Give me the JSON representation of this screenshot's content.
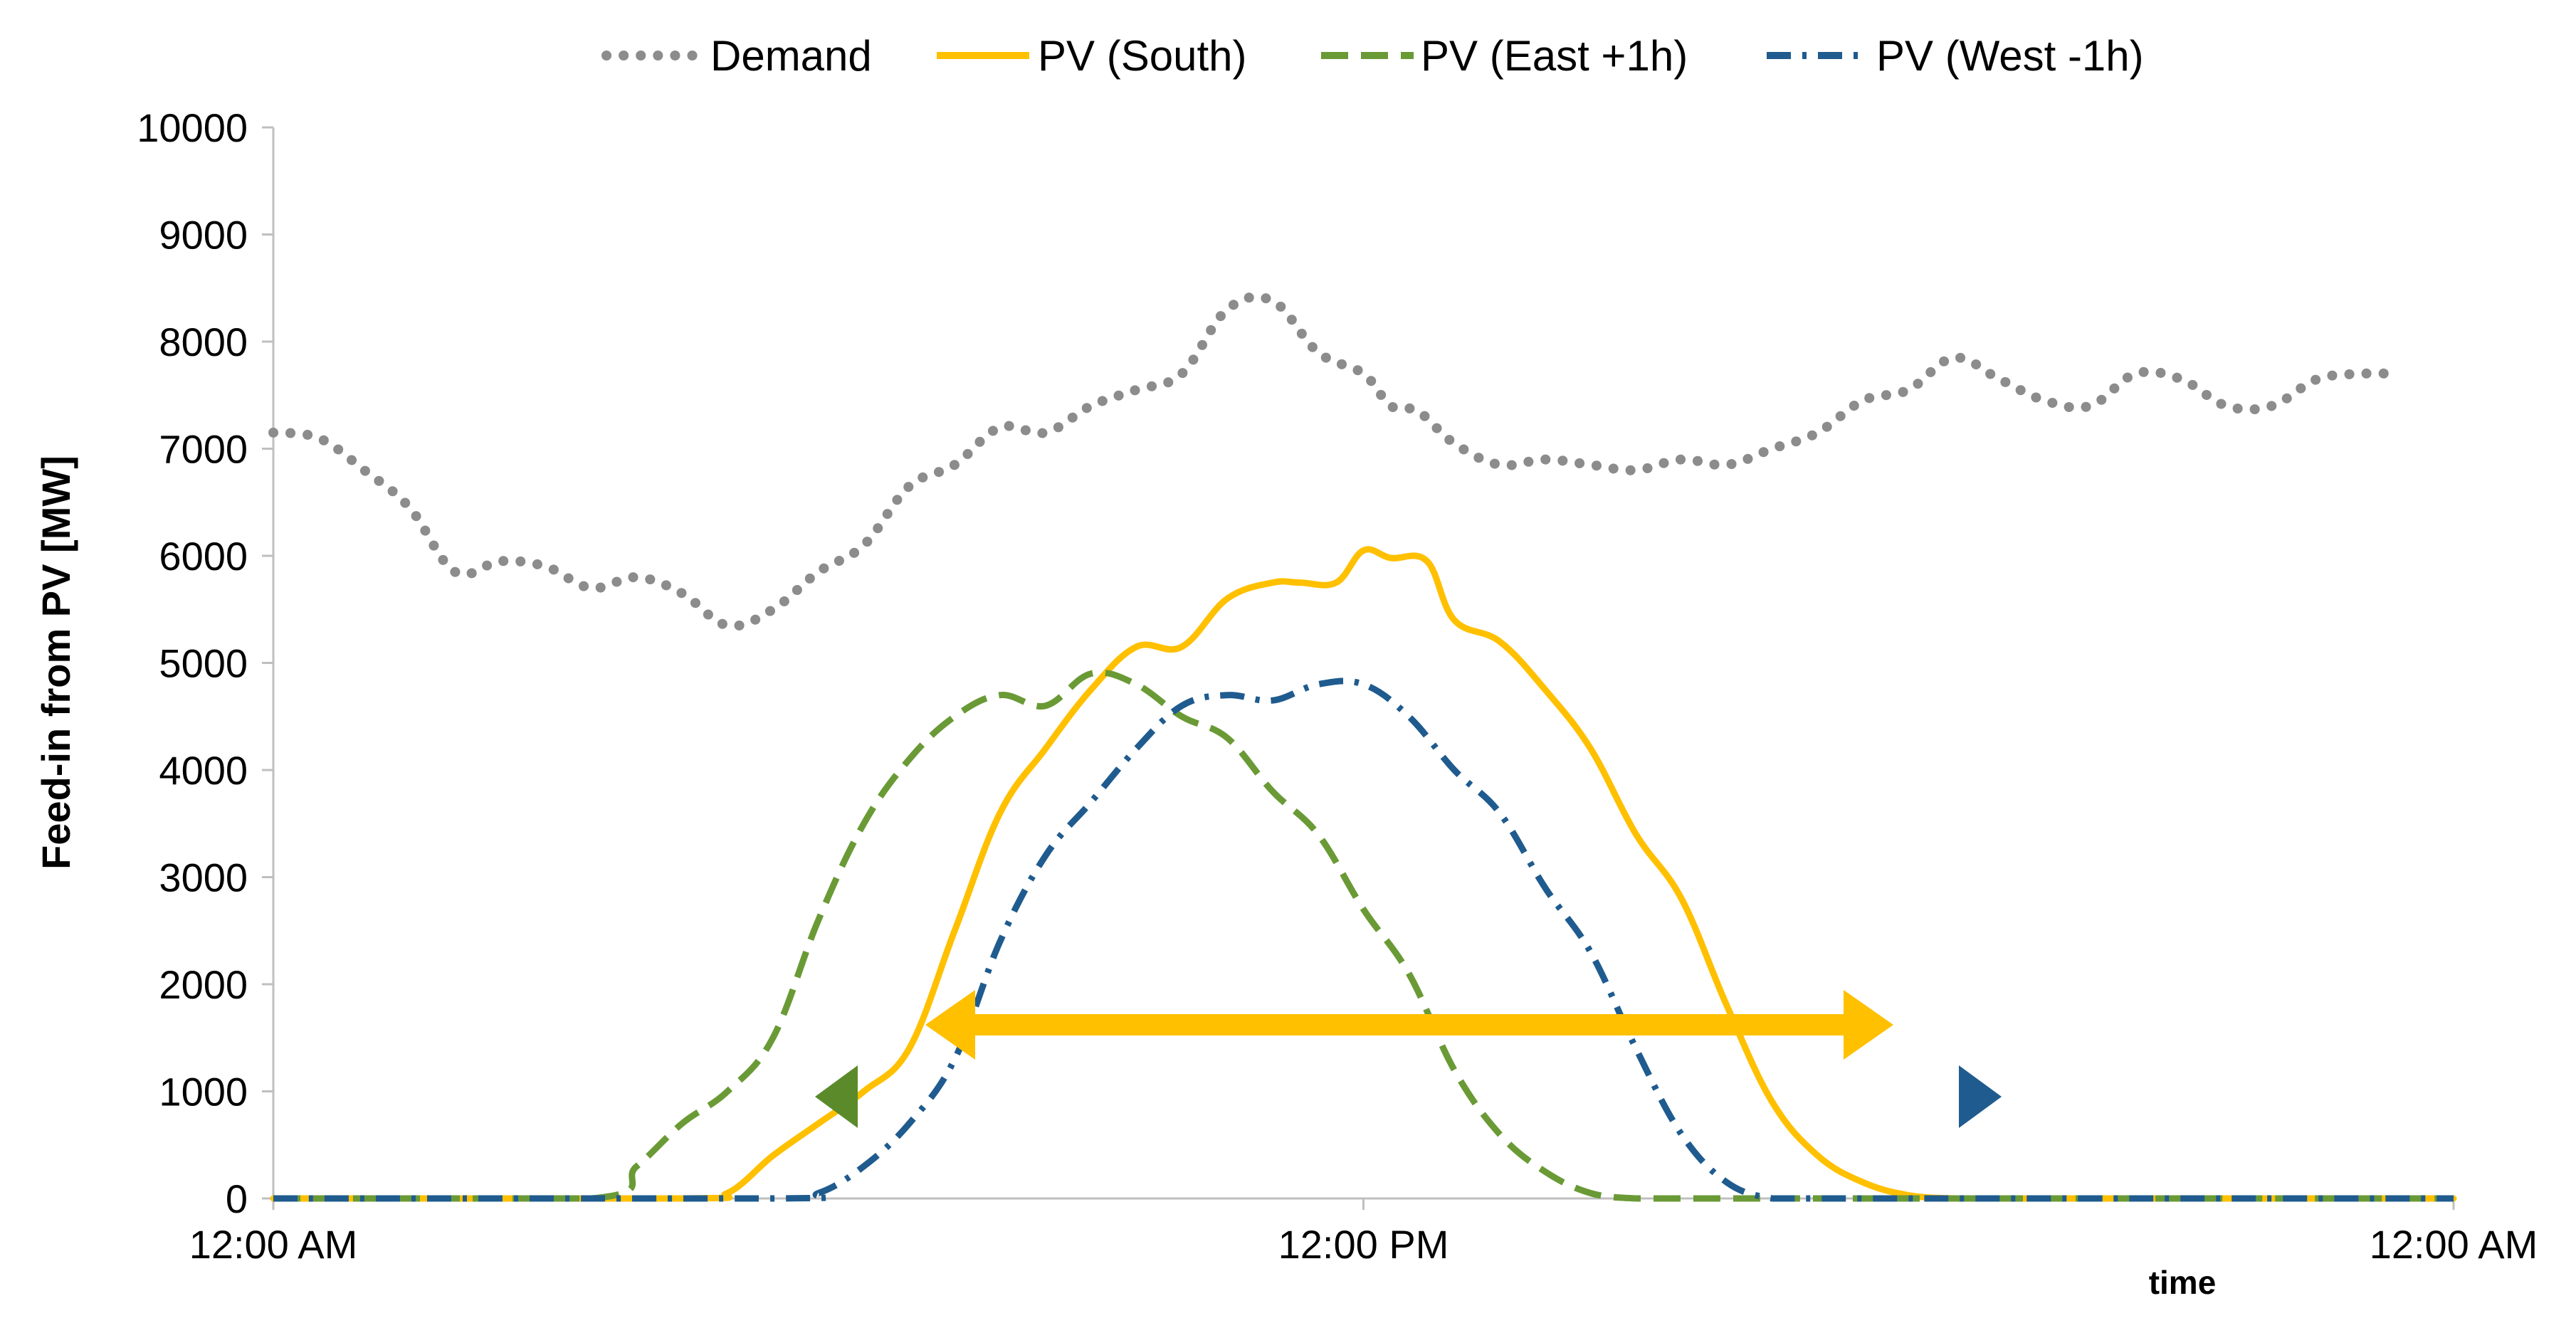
{
  "chart_data": {
    "type": "line",
    "title": "",
    "xlabel": "time",
    "ylabel": "Feed-in from PV [MW]",
    "ylim": [
      0,
      10000
    ],
    "yticks": [
      0,
      1000,
      2000,
      3000,
      4000,
      5000,
      6000,
      7000,
      8000,
      9000,
      10000
    ],
    "xlim": [
      0,
      24
    ],
    "xticks": [
      {
        "hour": 0,
        "label": "12:00 AM"
      },
      {
        "hour": 12,
        "label": "12:00 PM"
      },
      {
        "hour": 24,
        "label": "12:00 AM"
      }
    ],
    "grid": false,
    "legend_position": "top-center",
    "series": [
      {
        "name": "Demand",
        "style": "dotted",
        "color": "#8c8c8c",
        "x": [
          0,
          0.5,
          1,
          1.5,
          2,
          2.5,
          3,
          3.5,
          4,
          4.5,
          5,
          5.5,
          6,
          6.5,
          7,
          7.5,
          8,
          8.5,
          9,
          9.5,
          10,
          10.5,
          11,
          11.5,
          12,
          12.3,
          12.6,
          13,
          13.5,
          14,
          14.5,
          15,
          15.5,
          16,
          16.5,
          17,
          17.5,
          18,
          18.5,
          19,
          19.5,
          20,
          20.5,
          21,
          21.5,
          22,
          22.5,
          23,
          23.3
        ],
        "values": [
          7150,
          7100,
          6800,
          6450,
          5850,
          5950,
          5900,
          5700,
          5800,
          5650,
          5350,
          5500,
          5850,
          6100,
          6650,
          6850,
          7200,
          7150,
          7400,
          7550,
          7700,
          8300,
          8380,
          7900,
          7700,
          7400,
          7350,
          7050,
          6850,
          6900,
          6850,
          6800,
          6900,
          6850,
          7000,
          7150,
          7450,
          7550,
          7850,
          7650,
          7450,
          7400,
          7700,
          7650,
          7400,
          7400,
          7650,
          7700,
          7700
        ]
      },
      {
        "name": "PV (South)",
        "style": "solid",
        "color": "#ffc000",
        "x": [
          0,
          4.5,
          5,
          5.5,
          6,
          6.5,
          7,
          7.5,
          8,
          8.5,
          9,
          9.5,
          10,
          10.5,
          11,
          11.3,
          11.7,
          12,
          12.3,
          12.7,
          13,
          13.5,
          14,
          14.5,
          15,
          15.5,
          16,
          16.5,
          17,
          17.5,
          18,
          18.5,
          19,
          19.5,
          20,
          24
        ],
        "values": [
          0,
          0,
          50,
          400,
          700,
          1000,
          1400,
          2500,
          3600,
          4200,
          4750,
          5150,
          5150,
          5600,
          5750,
          5750,
          5750,
          6050,
          5980,
          5950,
          5400,
          5200,
          4750,
          4200,
          3400,
          2800,
          1800,
          900,
          400,
          150,
          30,
          0,
          0,
          0,
          0,
          0
        ]
      },
      {
        "name": "PV (East +1h)",
        "style": "dashed",
        "color": "#6a9a35",
        "x": [
          0,
          3.5,
          4,
          4.5,
          5,
          5.5,
          6,
          6.5,
          7,
          7.5,
          8,
          8.5,
          9,
          9.5,
          10,
          10.5,
          11,
          11.5,
          12,
          12.5,
          13,
          13.5,
          14,
          14.5,
          15,
          15.5,
          16,
          16.5,
          17,
          17.5,
          18,
          18.5,
          19,
          24
        ],
        "values": [
          0,
          0,
          300,
          700,
          1000,
          1500,
          2600,
          3500,
          4100,
          4500,
          4700,
          4600,
          4900,
          4800,
          4500,
          4300,
          3800,
          3400,
          2700,
          2100,
          1200,
          600,
          250,
          50,
          0,
          0,
          0,
          0,
          0,
          0,
          0,
          0,
          0,
          0
        ]
      },
      {
        "name": "PV (West -1h)",
        "style": "dashdot",
        "color": "#1f5b8e",
        "x": [
          0,
          5.5,
          6,
          6.5,
          7,
          7.5,
          8,
          8.5,
          9,
          9.5,
          10,
          10.5,
          11,
          11.5,
          12,
          12.5,
          13,
          13.5,
          14,
          14.5,
          15,
          15.5,
          16,
          16.5,
          17,
          17.5,
          18,
          18.5,
          19,
          19.5,
          20,
          20.5,
          21,
          24
        ],
        "values": [
          0,
          0,
          50,
          300,
          700,
          1300,
          2400,
          3200,
          3700,
          4200,
          4600,
          4700,
          4650,
          4800,
          4800,
          4500,
          4000,
          3600,
          2900,
          2300,
          1400,
          600,
          150,
          0,
          0,
          0,
          0,
          0,
          0,
          0,
          0,
          0,
          0,
          0
        ]
      }
    ],
    "annotations": [
      {
        "type": "double-arrow",
        "description": "South PV feed-in span",
        "from_hour": 7.2,
        "to_hour": 17.4,
        "level": 1650,
        "color": "#ffc000"
      },
      {
        "type": "double-arrow",
        "description": "East-to-West PV feed-in span",
        "from_hour": 6.1,
        "to_hour": 18.9,
        "level": 950,
        "color_start": "#5a8a2a",
        "color_mid": "#c6d6ef",
        "color_end": "#1f5b8e"
      }
    ]
  }
}
